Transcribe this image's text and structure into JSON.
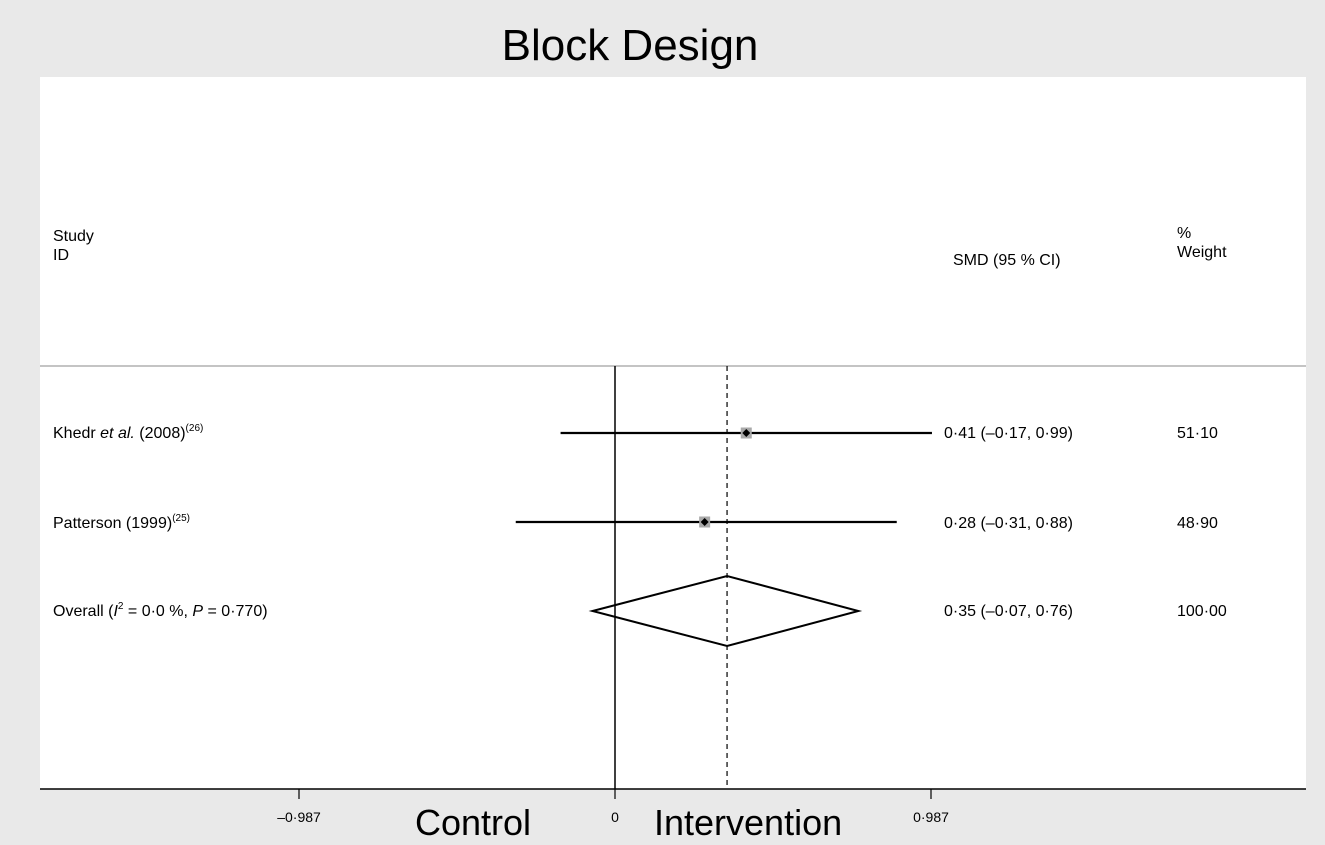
{
  "chart_data": {
    "type": "forest",
    "title": "Block Design",
    "header": {
      "study_line1": "Study",
      "study_line2": "ID",
      "smd": "SMD (95 % CI)",
      "weight_line1": "%",
      "weight_line2": "Weight"
    },
    "studies": [
      {
        "name": "Khedr",
        "etal": "et al.",
        "year": "(2008)",
        "ref": "(26)",
        "smd": 0.41,
        "ci_low": -0.17,
        "ci_high": 0.99,
        "smd_text": "0·41 (–0·17, 0·99)",
        "weight_text": "51·10"
      },
      {
        "name": "Patterson (1999)",
        "ref": "(25)",
        "smd": 0.28,
        "ci_low": -0.31,
        "ci_high": 0.88,
        "smd_text": "0·28 (–0·31, 0·88)",
        "weight_text": "48·90"
      }
    ],
    "overall": {
      "label_prefix": "Overall (",
      "i2_symbol": "I",
      "i2_exp": "2",
      "i2_text": " = 0·0 %, ",
      "p_symbol": "P",
      "p_text": " = 0·770)",
      "smd": 0.35,
      "ci_low": -0.07,
      "ci_high": 0.76,
      "smd_text": "0·35 (–0·07, 0·76)",
      "weight_text": "100·00"
    },
    "xaxis": {
      "ticks": [
        -0.987,
        0,
        0.987
      ],
      "tick_labels": [
        "–0·987",
        "0",
        "0·987"
      ],
      "range": [
        -0.987,
        0.987
      ],
      "left_label": "Control",
      "right_label": "Intervention"
    },
    "null_line": 0,
    "pooled_line": 0.35,
    "colors": {
      "background": "#e9e9e9",
      "plot": "#ffffff",
      "box": "#a9a9a9",
      "line": "#000000"
    }
  }
}
